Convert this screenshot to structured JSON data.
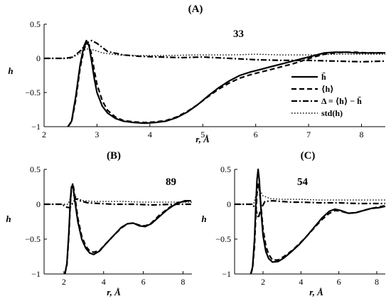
{
  "chart_data": [
    {
      "type": "line",
      "panel_label": "(A)",
      "annotation": "33",
      "xlabel": "r, Å",
      "ylabel": "h",
      "xlim": [
        2,
        8.45
      ],
      "ylim": [
        -1,
        0.5
      ],
      "xticks": [
        2,
        3,
        4,
        5,
        6,
        7,
        8
      ],
      "yticks": [
        0.5,
        0,
        -0.5,
        -1
      ],
      "ytick_labels": [
        "0.5",
        "0",
        "−0.5",
        "−1"
      ],
      "grid": false,
      "legend": "right",
      "series": [
        {
          "name": "h̄",
          "style": "solid",
          "x": [
            2.45,
            2.52,
            2.6,
            2.68,
            2.75,
            2.8,
            2.85,
            2.9,
            2.95,
            3.0,
            3.1,
            3.2,
            3.35,
            3.5,
            3.7,
            3.9,
            4.1,
            4.3,
            4.5,
            4.7,
            4.9,
            5.1,
            5.3,
            5.5,
            5.7,
            5.9,
            6.1,
            6.3,
            6.5,
            6.7,
            6.9,
            7.1,
            7.3,
            7.5,
            7.7,
            7.9,
            8.1,
            8.3,
            8.45
          ],
          "y": [
            -1,
            -0.92,
            -0.55,
            -0.1,
            0.17,
            0.26,
            0.18,
            -0.05,
            -0.3,
            -0.5,
            -0.7,
            -0.8,
            -0.88,
            -0.92,
            -0.94,
            -0.95,
            -0.94,
            -0.92,
            -0.87,
            -0.79,
            -0.68,
            -0.55,
            -0.43,
            -0.33,
            -0.25,
            -0.2,
            -0.16,
            -0.12,
            -0.08,
            -0.04,
            0.0,
            0.04,
            0.08,
            0.09,
            0.09,
            0.08,
            0.08,
            0.08,
            0.08
          ]
        },
        {
          "name": "⟨h⟩",
          "style": "dashed",
          "x": [
            2.45,
            2.52,
            2.6,
            2.68,
            2.75,
            2.8,
            2.85,
            2.9,
            2.95,
            3.0,
            3.1,
            3.2,
            3.35,
            3.5,
            3.7,
            3.9,
            4.1,
            4.3,
            4.5,
            4.7,
            4.9,
            5.1,
            5.3,
            5.5,
            5.7,
            5.9,
            6.1,
            6.3,
            6.5,
            6.7,
            6.9,
            7.1,
            7.3,
            7.5,
            7.7,
            7.9,
            8.1,
            8.3,
            8.45
          ],
          "y": [
            -1,
            -0.93,
            -0.6,
            -0.15,
            0.12,
            0.22,
            0.2,
            0.05,
            -0.18,
            -0.38,
            -0.62,
            -0.76,
            -0.86,
            -0.91,
            -0.93,
            -0.94,
            -0.93,
            -0.91,
            -0.86,
            -0.78,
            -0.68,
            -0.56,
            -0.45,
            -0.36,
            -0.29,
            -0.24,
            -0.2,
            -0.16,
            -0.12,
            -0.08,
            -0.03,
            0.02,
            0.06,
            0.08,
            0.09,
            0.09,
            0.08,
            0.08,
            0.08
          ]
        },
        {
          "name": "Δ = ⟨h⟩ − h̄",
          "style": "dashdot",
          "x": [
            2.0,
            2.4,
            2.55,
            2.7,
            2.8,
            2.9,
            3.0,
            3.2,
            3.5,
            3.8,
            4.2,
            4.6,
            5.0,
            5.5,
            6.0,
            6.5,
            7.0,
            7.5,
            8.0,
            8.45
          ],
          "y": [
            0.0,
            0.0,
            0.02,
            0.12,
            0.22,
            0.26,
            0.22,
            0.1,
            0.05,
            0.03,
            0.02,
            0.01,
            0.02,
            0.0,
            -0.02,
            -0.03,
            -0.03,
            -0.04,
            -0.05,
            -0.04
          ]
        },
        {
          "name": "std(h)",
          "style": "dotted",
          "x": [
            2.0,
            2.5,
            2.65,
            2.8,
            2.95,
            3.1,
            3.4,
            3.8,
            4.2,
            4.8,
            5.5,
            6.0,
            6.5,
            7.0,
            7.5,
            8.0,
            8.45
          ],
          "y": [
            0.0,
            0.0,
            0.06,
            0.14,
            0.12,
            0.08,
            0.05,
            0.04,
            0.04,
            0.05,
            0.05,
            0.06,
            0.05,
            0.05,
            0.06,
            0.06,
            0.06
          ]
        }
      ]
    },
    {
      "type": "line",
      "panel_label": "(B)",
      "annotation": "89",
      "xlabel": "r, Å",
      "ylabel": "h",
      "xlim": [
        1,
        8.45
      ],
      "ylim": [
        -1,
        0.5
      ],
      "xticks": [
        2,
        4,
        6,
        8
      ],
      "yticks": [
        0.5,
        0,
        -0.5,
        -1
      ],
      "ytick_labels": [
        "0.5",
        "0",
        "−0.5",
        "−1"
      ],
      "grid": false,
      "series": [
        {
          "name": "h̄",
          "style": "solid",
          "x": [
            2.05,
            2.15,
            2.25,
            2.32,
            2.38,
            2.45,
            2.55,
            2.7,
            2.9,
            3.1,
            3.3,
            3.5,
            3.8,
            4.1,
            4.5,
            4.9,
            5.2,
            5.5,
            5.8,
            6.1,
            6.4,
            6.8,
            7.2,
            7.5,
            7.8,
            8.1,
            8.4
          ],
          "y": [
            -1,
            -0.85,
            -0.4,
            0.05,
            0.25,
            0.27,
            0.05,
            -0.25,
            -0.5,
            -0.63,
            -0.7,
            -0.72,
            -0.67,
            -0.57,
            -0.45,
            -0.33,
            -0.28,
            -0.27,
            -0.31,
            -0.32,
            -0.28,
            -0.18,
            -0.08,
            -0.02,
            0.02,
            0.05,
            0.05
          ]
        },
        {
          "name": "⟨h⟩",
          "style": "dashed",
          "x": [
            2.05,
            2.15,
            2.25,
            2.32,
            2.38,
            2.45,
            2.55,
            2.7,
            2.9,
            3.1,
            3.3,
            3.5,
            3.8,
            4.1,
            4.5,
            4.9,
            5.2,
            5.5,
            5.8,
            6.1,
            6.4,
            6.8,
            7.2,
            7.5,
            7.8,
            8.1,
            8.4
          ],
          "y": [
            -1,
            -0.87,
            -0.45,
            0.0,
            0.22,
            0.3,
            0.12,
            -0.2,
            -0.46,
            -0.6,
            -0.67,
            -0.69,
            -0.66,
            -0.57,
            -0.45,
            -0.34,
            -0.28,
            -0.27,
            -0.3,
            -0.31,
            -0.27,
            -0.16,
            -0.07,
            -0.01,
            0.03,
            0.04,
            0.05
          ]
        },
        {
          "name": "Δ = ⟨h⟩ − h̄",
          "style": "dashdot",
          "x": [
            1.0,
            1.9,
            2.1,
            2.3,
            2.45,
            2.6,
            2.8,
            3.2,
            3.8,
            4.5,
            5.5,
            6.5,
            7.5,
            8.45
          ],
          "y": [
            0.0,
            0.0,
            -0.04,
            -0.05,
            0.02,
            0.08,
            0.05,
            0.02,
            0.01,
            0.0,
            0.0,
            -0.01,
            0.0,
            0.0
          ]
        },
        {
          "name": "std(h)",
          "style": "dotted",
          "x": [
            1.0,
            2.2,
            2.35,
            2.5,
            2.7,
            3.0,
            3.5,
            4.0,
            5.0,
            6.0,
            7.0,
            8.45
          ],
          "y": [
            0.0,
            0.0,
            0.1,
            0.13,
            0.08,
            0.05,
            0.04,
            0.04,
            0.04,
            0.03,
            0.03,
            0.03
          ]
        }
      ]
    },
    {
      "type": "line",
      "panel_label": "(C)",
      "annotation": "54",
      "xlabel": "r, Å",
      "ylabel": "h",
      "xlim": [
        0.5,
        8.45
      ],
      "ylim": [
        -1,
        0.5
      ],
      "xticks": [
        2,
        4,
        6,
        8
      ],
      "yticks": [
        0.5,
        0,
        -0.5,
        -1
      ],
      "ytick_labels": [
        "0.5",
        "0",
        "−0.5",
        "−1"
      ],
      "grid": false,
      "series": [
        {
          "name": "h̄",
          "style": "solid",
          "x": [
            1.35,
            1.45,
            1.55,
            1.62,
            1.68,
            1.74,
            1.8,
            1.9,
            2.0,
            2.15,
            2.3,
            2.5,
            2.8,
            3.1,
            3.5,
            3.9,
            4.3,
            4.7,
            5.1,
            5.5,
            5.8,
            6.1,
            6.5,
            6.9,
            7.3,
            7.7,
            8.1,
            8.45
          ],
          "y": [
            -1,
            -0.9,
            -0.5,
            0.0,
            0.35,
            0.5,
            0.35,
            -0.1,
            -0.45,
            -0.68,
            -0.78,
            -0.83,
            -0.82,
            -0.77,
            -0.68,
            -0.58,
            -0.46,
            -0.33,
            -0.2,
            -0.1,
            -0.07,
            -0.09,
            -0.13,
            -0.12,
            -0.09,
            -0.06,
            -0.05,
            -0.03
          ]
        },
        {
          "name": "⟨h⟩",
          "style": "dashed",
          "x": [
            1.35,
            1.45,
            1.55,
            1.62,
            1.68,
            1.74,
            1.8,
            1.9,
            2.0,
            2.15,
            2.3,
            2.5,
            2.8,
            3.1,
            3.5,
            3.9,
            4.3,
            4.7,
            5.1,
            5.5,
            5.8,
            6.1,
            6.5,
            6.9,
            7.3,
            7.7,
            8.1,
            8.45
          ],
          "y": [
            -1,
            -0.92,
            -0.6,
            -0.15,
            0.15,
            0.3,
            0.24,
            -0.05,
            -0.35,
            -0.6,
            -0.72,
            -0.8,
            -0.8,
            -0.75,
            -0.67,
            -0.57,
            -0.46,
            -0.34,
            -0.22,
            -0.13,
            -0.09,
            -0.1,
            -0.13,
            -0.12,
            -0.09,
            -0.06,
            -0.04,
            -0.02
          ]
        },
        {
          "name": "Δ = ⟨h⟩ − h̄",
          "style": "dashdot",
          "x": [
            0.5,
            1.4,
            1.6,
            1.75,
            1.9,
            2.1,
            2.5,
            3.0,
            3.5,
            4.0,
            5.0,
            6.0,
            7.0,
            8.45
          ],
          "y": [
            0.0,
            0.0,
            -0.05,
            -0.2,
            -0.06,
            0.04,
            0.05,
            0.04,
            0.03,
            0.03,
            0.02,
            0.02,
            0.01,
            0.01
          ]
        },
        {
          "name": "std(h)",
          "style": "dotted",
          "x": [
            0.5,
            1.5,
            1.65,
            1.8,
            2.0,
            2.4,
            3.0,
            4.0,
            5.0,
            6.0,
            7.0,
            8.45
          ],
          "y": [
            0.0,
            0.0,
            0.15,
            0.22,
            0.12,
            0.08,
            0.07,
            0.07,
            0.06,
            0.06,
            0.06,
            0.06
          ]
        }
      ]
    }
  ]
}
